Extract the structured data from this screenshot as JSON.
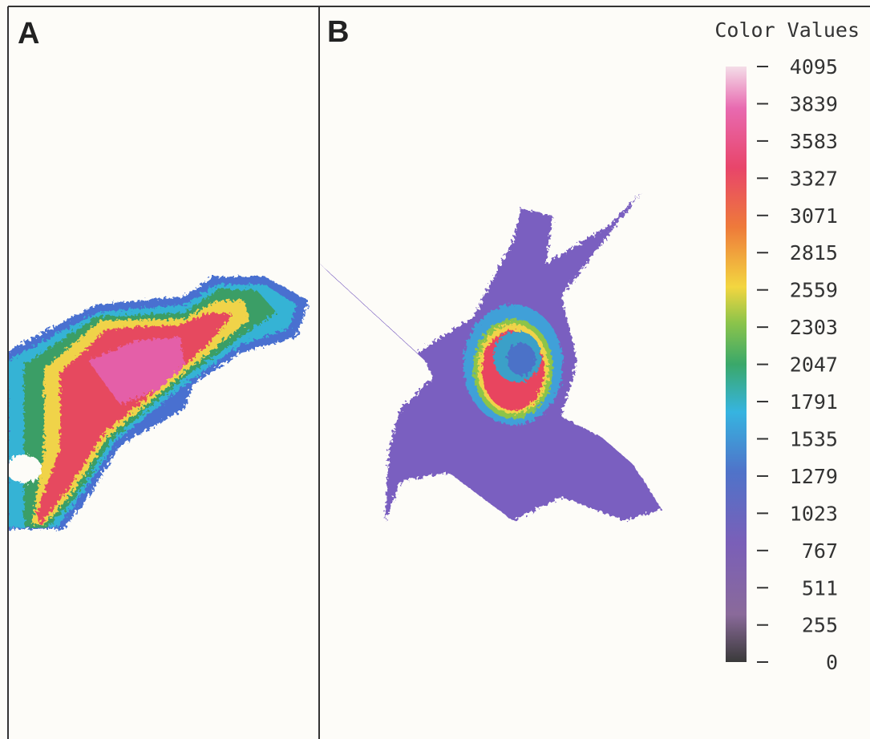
{
  "panels": [
    {
      "label": "A"
    },
    {
      "label": "B"
    }
  ],
  "colorbar": {
    "title": "Color Values",
    "lim": [
      0,
      4095
    ],
    "ticks": [
      4095,
      3839,
      3583,
      3327,
      3071,
      2815,
      2559,
      2303,
      2047,
      1791,
      1535,
      1279,
      1023,
      767,
      511,
      255,
      0
    ]
  }
}
